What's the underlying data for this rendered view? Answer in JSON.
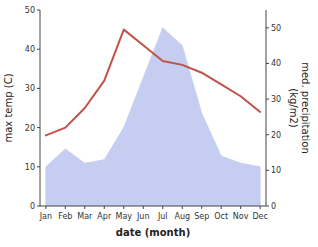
{
  "chart_data": {
    "type": "line",
    "categories": [
      "Jan",
      "Feb",
      "Mar",
      "Apr",
      "May",
      "Jun",
      "Jul",
      "Aug",
      "Sep",
      "Oct",
      "Nov",
      "Dec"
    ],
    "series": [
      {
        "type": "area",
        "axis": "y2",
        "color": "#c5cdf0",
        "values": [
          11,
          16,
          12,
          13,
          22,
          36,
          50,
          45,
          26,
          14,
          12,
          11
        ]
      },
      {
        "type": "line",
        "color": "#c0524a",
        "values": [
          18,
          20,
          25,
          32,
          45,
          41,
          37,
          36,
          34,
          31,
          28,
          24
        ]
      }
    ],
    "x_label": "date (month)",
    "y_label": "max temp (C)",
    "y2_label": "med. precipitation\n(kg/m2)",
    "ylim": [
      0,
      50
    ],
    "yticks": [
      0,
      10,
      20,
      30,
      40,
      50
    ],
    "y2lim": [
      0,
      55
    ],
    "y2ticks": [
      0,
      10,
      20,
      30,
      40,
      50
    ],
    "grid": false
  }
}
